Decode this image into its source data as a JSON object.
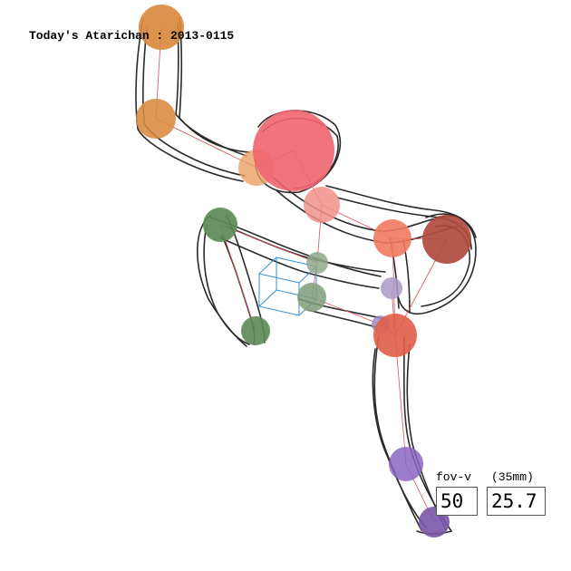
{
  "title": "Today's Atarichan : 2013-0115",
  "fov": {
    "label": "fov-v",
    "lens_label": "(35mm)",
    "fov_value": "50",
    "focal_value": "25.7"
  },
  "colors": {
    "stroke": "#2b2b2b",
    "bone": "#e0505a",
    "cube": "#3a8fd6",
    "head": "#ef6470",
    "orange": "#d98a3f",
    "green": "#5c8a57",
    "red": "#e0614a",
    "maroon": "#b04a3e",
    "purple": "#8b66c2",
    "lavender": "#a99ac4"
  }
}
